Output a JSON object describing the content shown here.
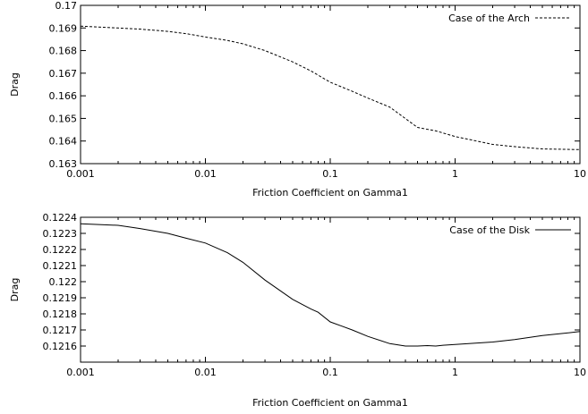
{
  "chart_data": [
    {
      "type": "line",
      "xlabel": "Friction Coefficient on Gamma1",
      "ylabel": "Drag",
      "x_scale": "log",
      "xlim": [
        0.001,
        10
      ],
      "ylim": [
        0.163,
        0.17
      ],
      "x_ticks": [
        "0.001",
        "0.01",
        "0.1",
        "1",
        "10"
      ],
      "y_ticks": [
        "0.163",
        "0.164",
        "0.165",
        "0.166",
        "0.167",
        "0.168",
        "0.169",
        "0.17"
      ],
      "legend_position": "top-right",
      "grid": false,
      "series": [
        {
          "name": "Case of the Arch",
          "line_style": "dashed",
          "color": "#000000",
          "x": [
            0.001,
            0.002,
            0.003,
            0.005,
            0.007,
            0.01,
            0.015,
            0.02,
            0.03,
            0.05,
            0.07,
            0.1,
            0.15,
            0.2,
            0.3,
            0.5,
            0.7,
            1,
            2,
            3,
            5,
            10
          ],
          "y": [
            0.16908,
            0.169,
            0.16895,
            0.16885,
            0.16875,
            0.1686,
            0.16845,
            0.1683,
            0.168,
            0.1675,
            0.1671,
            0.1666,
            0.1662,
            0.1659,
            0.1655,
            0.1646,
            0.16445,
            0.1642,
            0.16385,
            0.16375,
            0.16365,
            0.16362
          ]
        }
      ]
    },
    {
      "type": "line",
      "xlabel": "Friction Coefficient on Gamma1",
      "ylabel": "Drag",
      "x_scale": "log",
      "xlim": [
        0.001,
        10
      ],
      "ylim": [
        0.1215,
        0.1224
      ],
      "x_ticks": [
        "0.001",
        "0.01",
        "0.1",
        "1",
        "10"
      ],
      "y_ticks": [
        "0.1216",
        "0.1217",
        "0.1218",
        "0.1219",
        "0.122",
        "0.1221",
        "0.1222",
        "0.1223",
        "0.1224"
      ],
      "legend_position": "top-right",
      "grid": false,
      "series": [
        {
          "name": "Case of the Disk",
          "line_style": "solid",
          "color": "#000000",
          "x": [
            0.001,
            0.002,
            0.003,
            0.005,
            0.007,
            0.01,
            0.015,
            0.02,
            0.03,
            0.05,
            0.07,
            0.08,
            0.1,
            0.15,
            0.2,
            0.3,
            0.4,
            0.5,
            0.6,
            0.7,
            0.8,
            1,
            2,
            3,
            5,
            10
          ],
          "y": [
            0.12236,
            0.12235,
            0.12233,
            0.1223,
            0.12227,
            0.12224,
            0.12218,
            0.12212,
            0.12201,
            0.12189,
            0.12183,
            0.12181,
            0.12175,
            0.1217,
            0.12166,
            0.121615,
            0.1216,
            0.1216,
            0.121603,
            0.1216,
            0.121605,
            0.12161,
            0.121625,
            0.12164,
            0.121665,
            0.12169
          ]
        }
      ]
    }
  ]
}
